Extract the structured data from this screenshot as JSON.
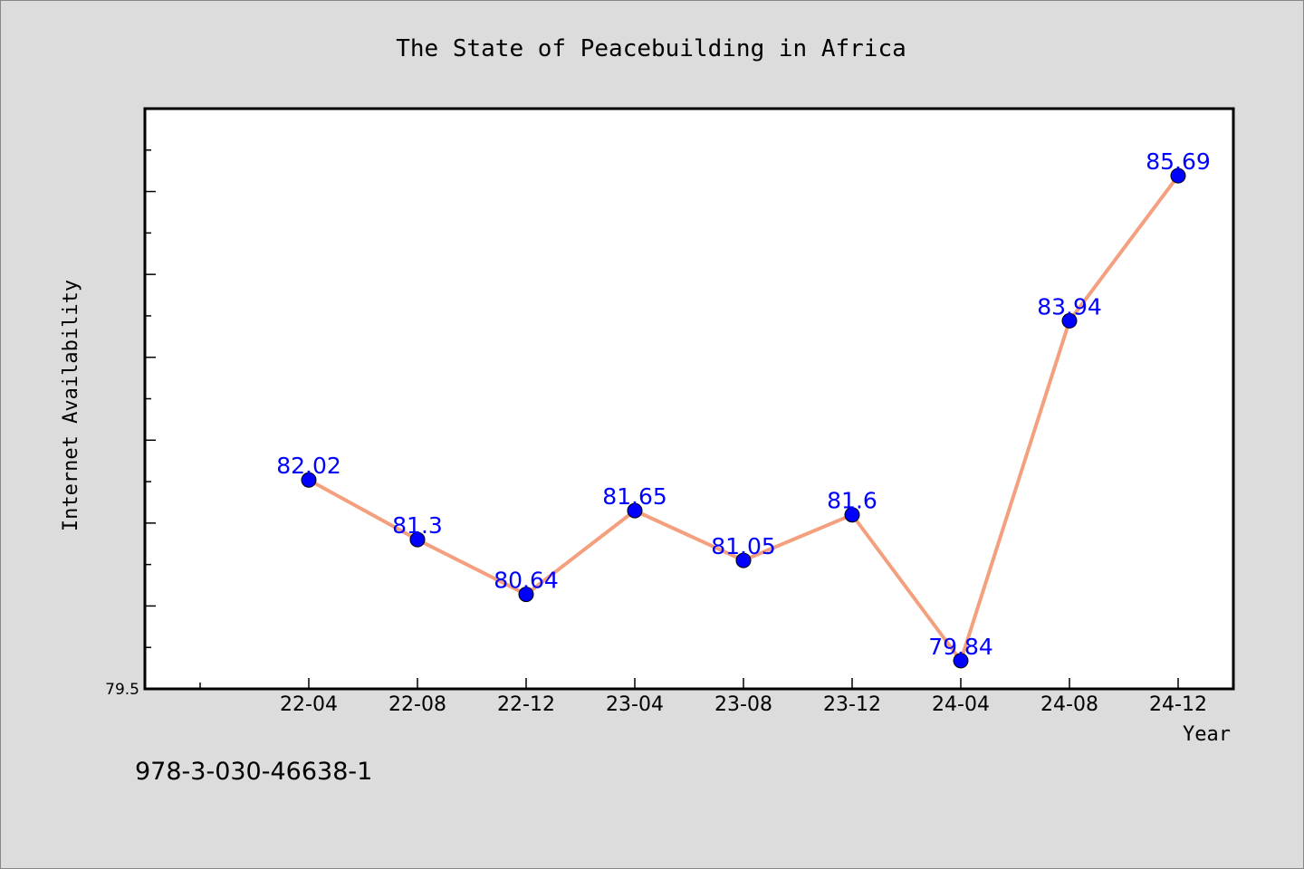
{
  "chart_data": {
    "type": "line",
    "title": "The State of Peacebuilding in Africa",
    "xlabel": "Year",
    "ylabel": "Internet Availability",
    "categories": [
      "22-04",
      "22-08",
      "22-12",
      "23-04",
      "23-08",
      "23-12",
      "24-04",
      "24-08",
      "24-12"
    ],
    "series": [
      {
        "values": [
          82.02,
          81.3,
          80.64,
          81.65,
          81.05,
          81.6,
          79.84,
          83.94,
          85.69
        ],
        "data_labels": [
          "82.02",
          "81.3",
          "80.64",
          "81.65",
          "81.05",
          "81.6",
          "79.84",
          "83.94",
          "85.69"
        ]
      }
    ],
    "ylim": [
      79.5,
      86.5
    ],
    "yticks_labeled": [
      "79.5"
    ],
    "grid": false,
    "legend": "none",
    "colors": {
      "line": "#f4a07e",
      "marker": "#0000ff",
      "data_label": "#0000ff",
      "plot_background": "#ffffff",
      "figure_background": "#dcdcdc"
    }
  },
  "footer": {
    "isbn": "978-3-030-46638-1"
  }
}
